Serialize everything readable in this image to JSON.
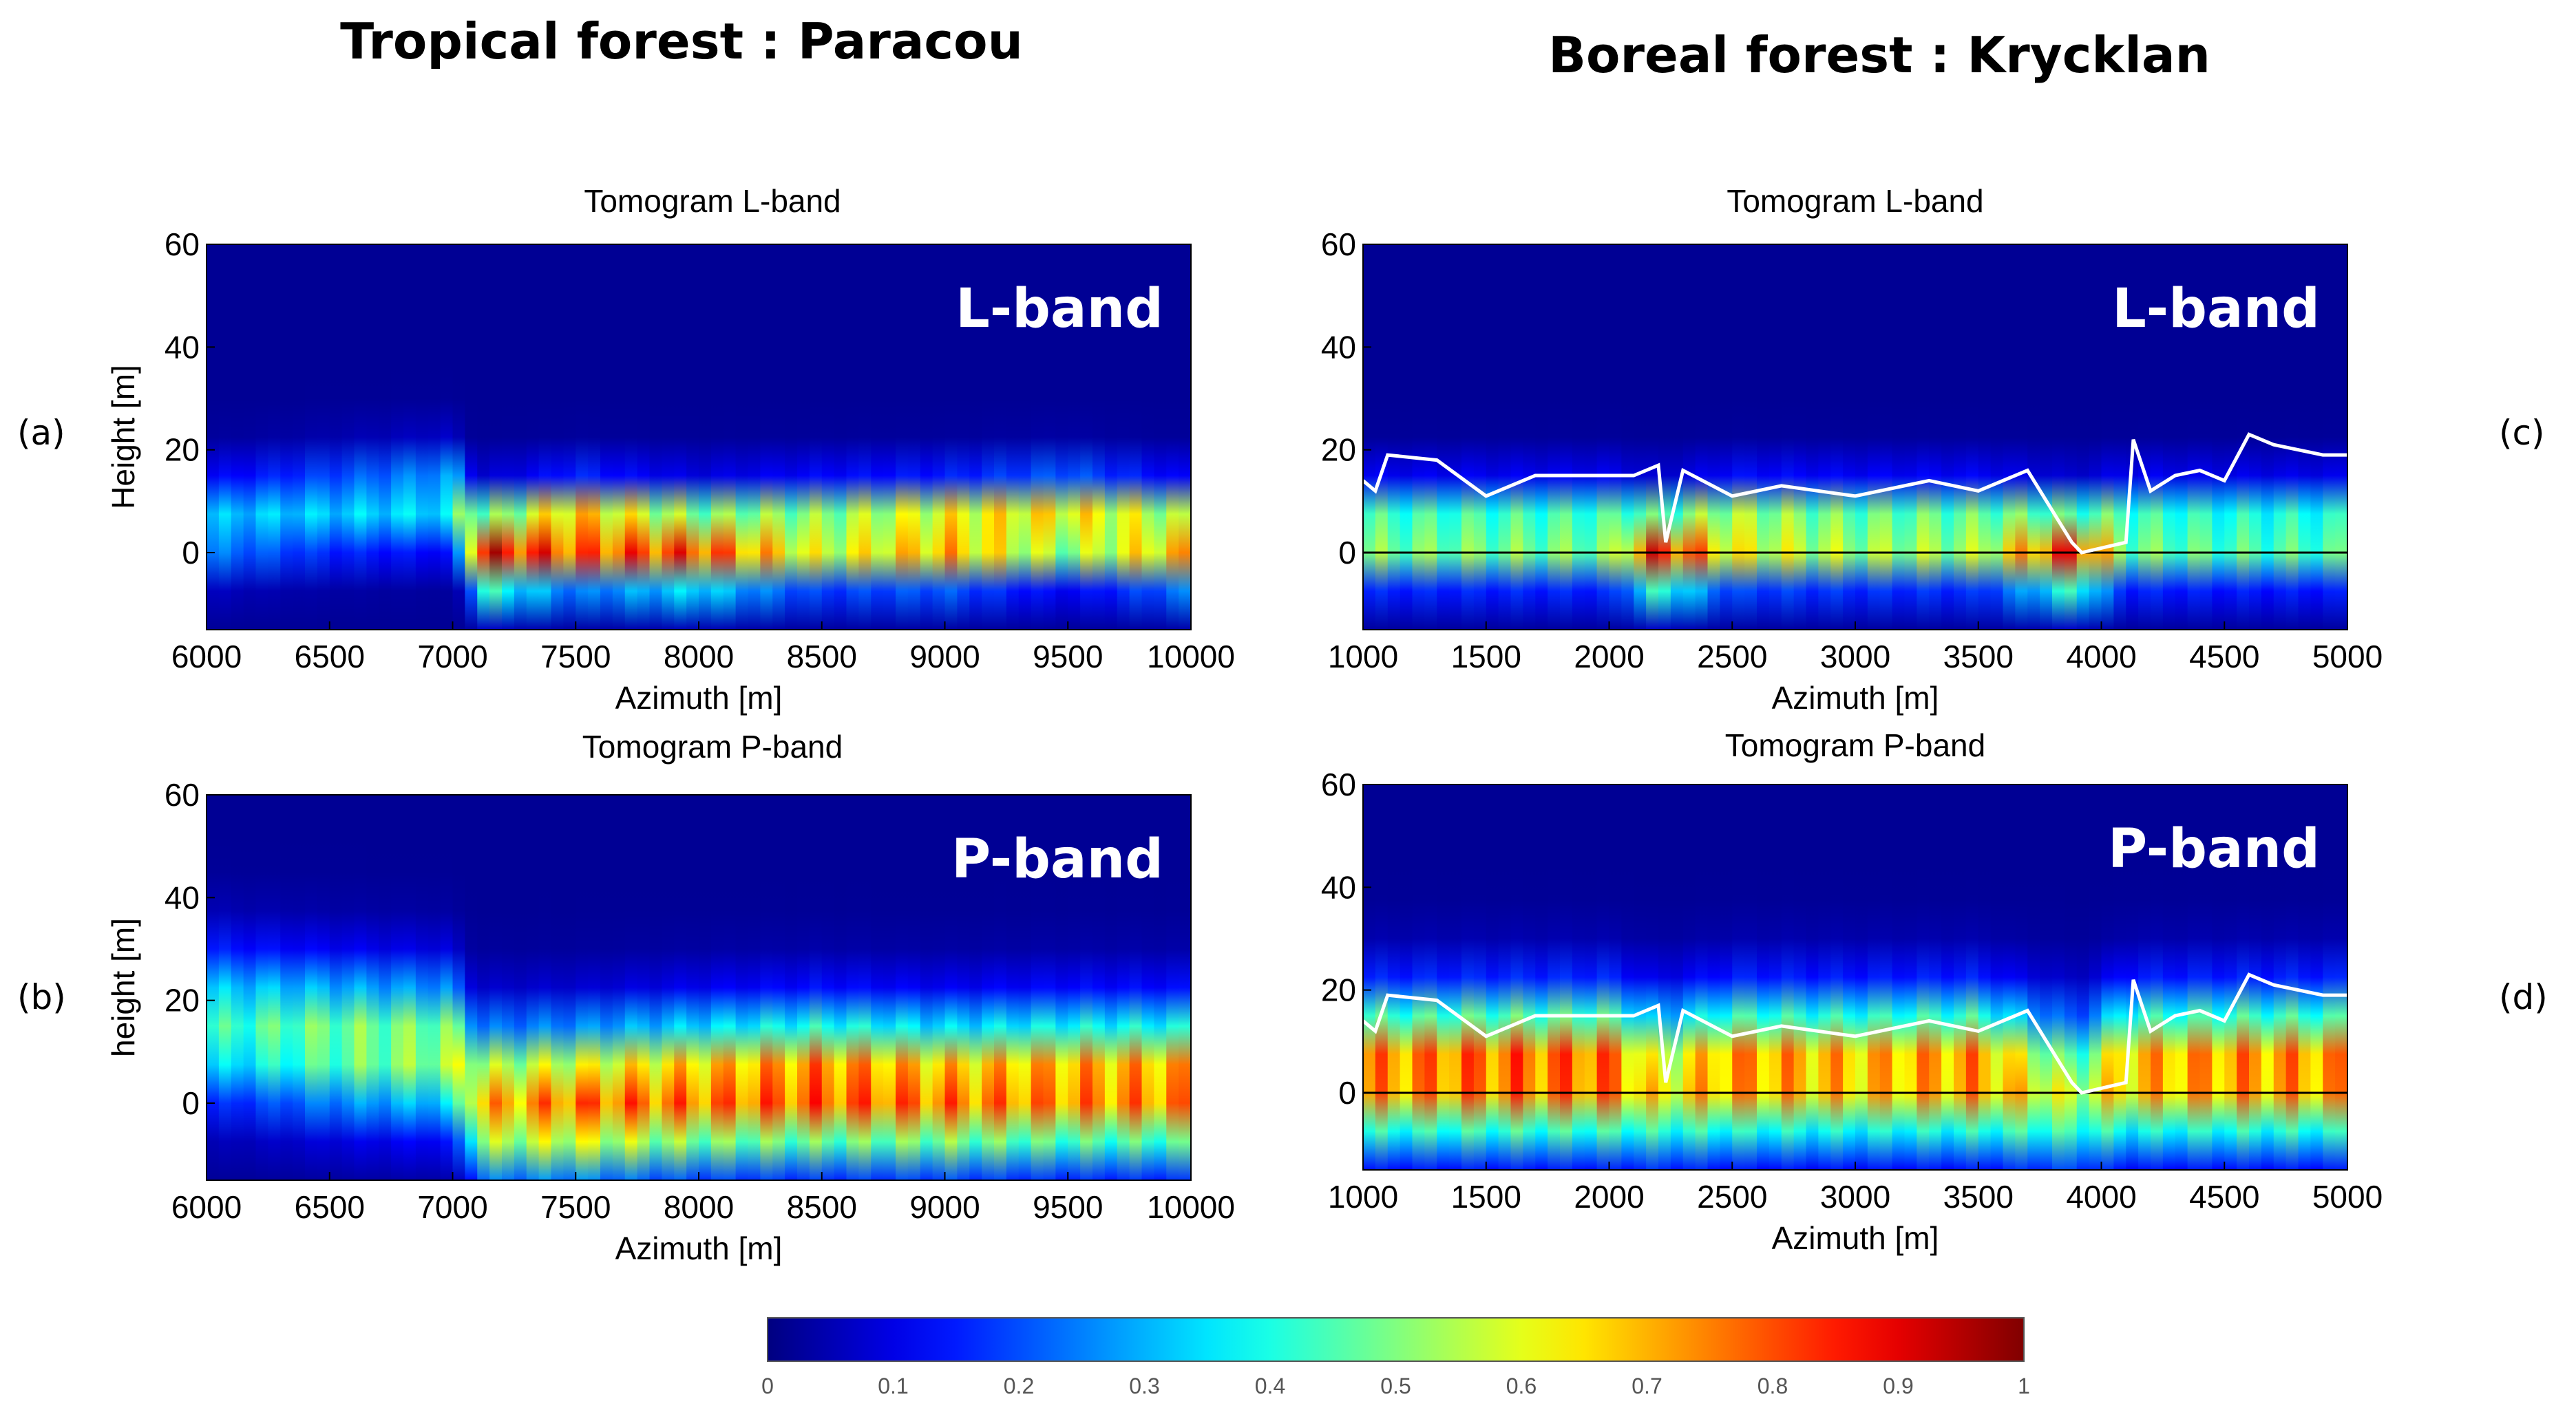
{
  "headers": {
    "left": "Tropical forest : Paracou",
    "right": "Boreal forest : Krycklan"
  },
  "panel_labels": {
    "a": "(a)",
    "b": "(b)",
    "c": "(c)",
    "d": "(d)"
  },
  "colors": {
    "background": "#00008f",
    "colormap": "jet",
    "canopy_line": "#ffffff",
    "ground_line": "#000000"
  },
  "chart_data": [
    {
      "id": "a",
      "type": "heatmap",
      "title": "Tomogram L-band",
      "band_label": "L-band",
      "xlabel": "Azimuth  [m]",
      "ylabel": "Height [m]",
      "xlim": [
        6000,
        10000
      ],
      "ylim": [
        -15,
        60
      ],
      "xticks": [
        6000,
        6500,
        7000,
        7500,
        8000,
        8500,
        9000,
        9500,
        10000
      ],
      "yticks": [
        0,
        20,
        40,
        60
      ],
      "intensity_profile": {
        "x": [
          6000,
          6500,
          7000,
          7100,
          7500,
          8000,
          8500,
          9000,
          9500,
          10000
        ],
        "peak_height": [
          5,
          8,
          10,
          0,
          3,
          1,
          3,
          3,
          5,
          2
        ],
        "peak_value": [
          0.35,
          0.35,
          0.4,
          0.95,
          0.95,
          0.9,
          0.7,
          0.85,
          0.75,
          0.8
        ]
      }
    },
    {
      "id": "b",
      "type": "heatmap",
      "title": "Tomogram P-band",
      "band_label": "P-band",
      "xlabel": "Azimuth  [m]",
      "ylabel": "height [m]",
      "xlim": [
        6000,
        10000
      ],
      "ylim": [
        -15,
        60
      ],
      "xticks": [
        6000,
        6500,
        7000,
        7500,
        8000,
        8500,
        9000,
        9500,
        10000
      ],
      "yticks": [
        0,
        20,
        40,
        60
      ],
      "intensity_profile": {
        "x": [
          6000,
          6500,
          7000,
          7100,
          7500,
          8000,
          8500,
          9000,
          9500,
          10000
        ],
        "peak_height": [
          15,
          12,
          10,
          0,
          0,
          2,
          3,
          2,
          3,
          3
        ],
        "peak_value": [
          0.45,
          0.55,
          0.6,
          0.75,
          0.85,
          0.85,
          0.9,
          0.85,
          0.85,
          0.85
        ]
      }
    },
    {
      "id": "c",
      "type": "heatmap",
      "title": "Tomogram L-band",
      "band_label": "L-band",
      "xlabel": "Azimuth  [m]",
      "ylabel": "",
      "xlim": [
        1000,
        5000
      ],
      "ylim": [
        -15,
        60
      ],
      "xticks": [
        1000,
        1500,
        2000,
        2500,
        3000,
        3500,
        4000,
        4500,
        5000
      ],
      "yticks": [
        0,
        20,
        40,
        60
      ],
      "intensity_profile": {
        "x": [
          1000,
          1500,
          2000,
          2200,
          2500,
          3000,
          3500,
          3900,
          4100,
          4500,
          5000
        ],
        "peak_height": [
          3,
          3,
          3,
          0,
          3,
          3,
          3,
          0,
          3,
          3,
          3
        ],
        "peak_value": [
          0.6,
          0.6,
          0.6,
          0.95,
          0.75,
          0.65,
          0.65,
          0.95,
          0.6,
          0.55,
          0.55
        ]
      },
      "canopy_height": {
        "x": [
          1000,
          1050,
          1100,
          1300,
          1500,
          1700,
          2100,
          2200,
          2230,
          2300,
          2500,
          2700,
          3000,
          3300,
          3500,
          3700,
          3880,
          3920,
          4100,
          4130,
          4200,
          4300,
          4400,
          4500,
          4600,
          4700,
          4900,
          5000
        ],
        "y": [
          14,
          12,
          19,
          18,
          11,
          15,
          15,
          17,
          2,
          16,
          11,
          13,
          11,
          14,
          12,
          16,
          2,
          0,
          2,
          22,
          12,
          15,
          16,
          14,
          23,
          21,
          19,
          19
        ]
      },
      "ground_height": 0
    },
    {
      "id": "d",
      "type": "heatmap",
      "title": "Tomogram P-band",
      "band_label": "P-band",
      "xlabel": "Azimuth  [m]",
      "ylabel": "",
      "xlim": [
        1000,
        5000
      ],
      "ylim": [
        -15,
        60
      ],
      "xticks": [
        1000,
        1500,
        2000,
        2500,
        3000,
        3500,
        4000,
        4500,
        5000
      ],
      "yticks": [
        0,
        20,
        40,
        60
      ],
      "intensity_profile": {
        "x": [
          1000,
          1500,
          2000,
          2200,
          2500,
          3000,
          3500,
          3900,
          4100,
          4500,
          5000
        ],
        "peak_height": [
          4,
          4,
          4,
          2,
          4,
          4,
          4,
          0,
          4,
          4,
          4
        ],
        "peak_value": [
          0.85,
          0.9,
          0.9,
          0.7,
          0.85,
          0.8,
          0.85,
          0.6,
          0.8,
          0.85,
          0.85
        ]
      },
      "canopy_height": {
        "x": [
          1000,
          1050,
          1100,
          1300,
          1500,
          1700,
          2100,
          2200,
          2230,
          2300,
          2500,
          2700,
          3000,
          3300,
          3500,
          3700,
          3880,
          3920,
          4100,
          4130,
          4200,
          4300,
          4400,
          4500,
          4600,
          4700,
          4900,
          5000
        ],
        "y": [
          14,
          12,
          19,
          18,
          11,
          15,
          15,
          17,
          2,
          16,
          11,
          13,
          11,
          14,
          12,
          16,
          2,
          0,
          2,
          22,
          12,
          15,
          16,
          14,
          23,
          21,
          19,
          19
        ]
      },
      "ground_height": 0
    }
  ],
  "colorbar": {
    "min": 0,
    "max": 1,
    "ticks": [
      "0",
      "0.1",
      "0.2",
      "0.3",
      "0.4",
      "0.5",
      "0.6",
      "0.7",
      "0.8",
      "0.9",
      "1"
    ]
  }
}
